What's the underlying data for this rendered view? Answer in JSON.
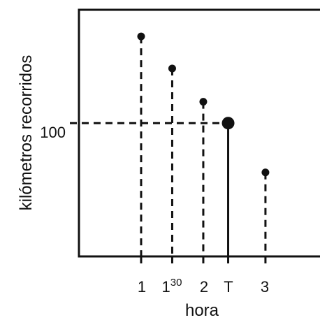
{
  "chart_data": {
    "type": "scatter",
    "title": "",
    "xlabel": "hora",
    "ylabel": "kilómetros recorridos",
    "x_ticks": [
      {
        "label": "1",
        "sup": "",
        "value": 1.0
      },
      {
        "label": "1",
        "sup": "30",
        "value": 1.5
      },
      {
        "label": "2",
        "sup": "",
        "value": 2.0
      },
      {
        "label": "T",
        "sup": "",
        "value": 2.4
      },
      {
        "label": "3",
        "sup": "",
        "value": 3.0
      }
    ],
    "y_ticks": [
      {
        "label": "100",
        "value": 100
      }
    ],
    "xlim": [
      0,
      3.9
    ],
    "ylim": [
      0,
      185
    ],
    "points": [
      {
        "x": 1.0,
        "y": 165,
        "style": "dashed",
        "highlight": false
      },
      {
        "x": 1.5,
        "y": 141,
        "style": "dashed",
        "highlight": false
      },
      {
        "x": 2.0,
        "y": 116,
        "style": "dashed",
        "highlight": false
      },
      {
        "x": 2.4,
        "y": 100,
        "style": "solid",
        "highlight": true
      },
      {
        "x": 3.0,
        "y": 63,
        "style": "dashed",
        "highlight": false
      }
    ],
    "reference_line": {
      "y": 100,
      "to_x": 2.4,
      "style": "dashed"
    },
    "grid": false,
    "legend": "none",
    "colors": {
      "ink": "#111111",
      "background": "#ffffff"
    }
  }
}
